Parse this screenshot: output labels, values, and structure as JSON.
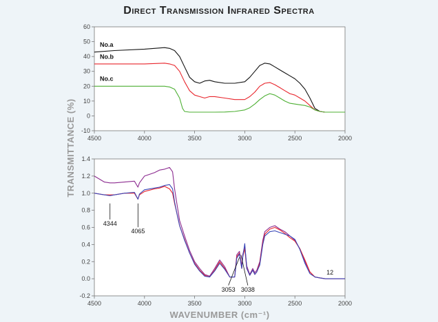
{
  "title": "Direct Transmission Infrared Spectra",
  "colors": {
    "black": "#111111",
    "red": "#e8232a",
    "green": "#4caf32",
    "purple": "#8b2a8f",
    "blue": "#3846b8",
    "background": "#eef4f8"
  },
  "chart_data": [
    {
      "type": "line",
      "xlim": [
        4500,
        2000
      ],
      "ylim": [
        -10,
        60
      ],
      "xticks": [
        4500,
        4000,
        3500,
        3000,
        2500,
        2000
      ],
      "yticks": [
        -10,
        0,
        10,
        20,
        30,
        40,
        50,
        60
      ],
      "series": [
        {
          "name": "No.a",
          "color": "#111111",
          "x": [
            4500,
            4300,
            4000,
            3800,
            3750,
            3700,
            3650,
            3600,
            3550,
            3500,
            3450,
            3400,
            3350,
            3300,
            3200,
            3100,
            3000,
            2950,
            2900,
            2850,
            2800,
            2750,
            2700,
            2650,
            2600,
            2550,
            2500,
            2450,
            2400,
            2350,
            2300,
            2250,
            2200,
            2100,
            2000
          ],
          "y": [
            43,
            44,
            45,
            46,
            45.5,
            44,
            40,
            33,
            26,
            23,
            22,
            23.5,
            24,
            23,
            22,
            22,
            23,
            26,
            30,
            34,
            35.5,
            35,
            33,
            31,
            29,
            27,
            25,
            22,
            18,
            12,
            5,
            3,
            2.5,
            2.5,
            2.5
          ]
        },
        {
          "name": "No.b",
          "color": "#e8232a",
          "x": [
            4500,
            4000,
            3800,
            3750,
            3700,
            3650,
            3600,
            3550,
            3500,
            3450,
            3400,
            3350,
            3300,
            3200,
            3100,
            3000,
            2950,
            2900,
            2850,
            2800,
            2750,
            2700,
            2650,
            2600,
            2550,
            2500,
            2450,
            2400,
            2350,
            2300,
            2250,
            2200,
            2100,
            2000
          ],
          "y": [
            35,
            35,
            35.5,
            35,
            34,
            30,
            23,
            17,
            14,
            13,
            12,
            13,
            13,
            12,
            11,
            11,
            13,
            16,
            20,
            22,
            22.5,
            21,
            19,
            17,
            15,
            14,
            12,
            10,
            7,
            4,
            3,
            2.5,
            2.5,
            2.5
          ]
        },
        {
          "name": "No.c",
          "color": "#4caf32",
          "x": [
            4500,
            4000,
            3800,
            3750,
            3700,
            3650,
            3620,
            3600,
            3550,
            3500,
            3400,
            3300,
            3200,
            3100,
            3000,
            2950,
            2900,
            2850,
            2800,
            2750,
            2700,
            2650,
            2600,
            2550,
            2500,
            2450,
            2400,
            2350,
            2300,
            2250,
            2200,
            2100,
            2000
          ],
          "y": [
            20,
            20,
            20,
            19.5,
            18,
            12,
            5,
            3,
            2.5,
            2.5,
            2.5,
            2.5,
            2.6,
            3,
            4,
            5.5,
            8,
            11,
            13.5,
            15,
            14,
            12,
            10,
            8.5,
            8,
            7.5,
            7,
            6,
            4,
            3,
            2.5,
            2.5,
            2.5
          ]
        }
      ],
      "labels": {
        "a": "No.a",
        "b": "No.b",
        "c": "No.c"
      }
    },
    {
      "type": "line",
      "xlim": [
        4500,
        2000
      ],
      "ylim": [
        -0.2,
        1.4
      ],
      "xticks": [
        4500,
        4000,
        3500,
        3000,
        2500,
        2000
      ],
      "yticks": [
        -0.2,
        0.0,
        0.2,
        0.4,
        0.6,
        0.8,
        1.0,
        1.2,
        1.4
      ],
      "series": [
        {
          "name": "purple",
          "color": "#8b2a8f",
          "x": [
            4500,
            4400,
            4344,
            4300,
            4200,
            4100,
            4065,
            4050,
            4000,
            3900,
            3850,
            3800,
            3750,
            3720,
            3700,
            3680,
            3650,
            3600,
            3550,
            3500,
            3450,
            3400,
            3350,
            3300,
            3250,
            3200,
            3150,
            3100,
            3080,
            3053,
            3040,
            3030,
            3020,
            3000,
            2980,
            2950,
            2920,
            2900,
            2880,
            2850,
            2820,
            2800,
            2750,
            2700,
            2650,
            2600,
            2550,
            2500,
            2450,
            2400,
            2350,
            2300,
            2250,
            2200,
            2100,
            2000
          ],
          "y": [
            1.2,
            1.13,
            1.12,
            1.12,
            1.13,
            1.14,
            1.07,
            1.12,
            1.2,
            1.24,
            1.27,
            1.28,
            1.3,
            1.25,
            1.05,
            0.9,
            0.68,
            0.5,
            0.33,
            0.2,
            0.12,
            0.05,
            0.03,
            0.12,
            0.22,
            0.14,
            0.02,
            0.02,
            0.28,
            0.32,
            0.22,
            0.15,
            0.28,
            0.38,
            0.15,
            0.05,
            0.12,
            0.07,
            0.1,
            0.2,
            0.45,
            0.55,
            0.6,
            0.62,
            0.58,
            0.55,
            0.5,
            0.45,
            0.35,
            0.2,
            0.08,
            0.02,
            0.01,
            0.0,
            0.0,
            0.0
          ]
        },
        {
          "name": "red",
          "color": "#e8232a",
          "x": [
            4500,
            4400,
            4344,
            4300,
            4200,
            4100,
            4065,
            4050,
            4000,
            3900,
            3850,
            3800,
            3750,
            3720,
            3700,
            3680,
            3650,
            3600,
            3550,
            3500,
            3450,
            3400,
            3350,
            3300,
            3250,
            3200,
            3150,
            3100,
            3080,
            3053,
            3040,
            3030,
            3020,
            3000,
            2980,
            2950,
            2920,
            2900,
            2880,
            2850,
            2820,
            2800,
            2750,
            2700,
            2650,
            2600,
            2550,
            2500,
            2450,
            2400,
            2350,
            2300,
            2250,
            2200,
            2100,
            2000
          ],
          "y": [
            1.0,
            0.98,
            0.98,
            0.98,
            1.0,
            1.0,
            0.93,
            0.98,
            1.02,
            1.05,
            1.06,
            1.08,
            1.05,
            1.0,
            0.88,
            0.78,
            0.62,
            0.46,
            0.3,
            0.18,
            0.1,
            0.04,
            0.02,
            0.1,
            0.2,
            0.12,
            0.02,
            0.02,
            0.26,
            0.3,
            0.2,
            0.12,
            0.26,
            0.35,
            0.12,
            0.04,
            0.1,
            0.05,
            0.08,
            0.18,
            0.42,
            0.52,
            0.58,
            0.6,
            0.57,
            0.53,
            0.48,
            0.44,
            0.35,
            0.22,
            0.08,
            0.02,
            0.01,
            0.0,
            0.0,
            0.0
          ]
        },
        {
          "name": "blue",
          "color": "#3846b8",
          "x": [
            4500,
            4400,
            4344,
            4300,
            4200,
            4100,
            4065,
            4050,
            4000,
            3900,
            3850,
            3800,
            3750,
            3720,
            3700,
            3680,
            3650,
            3600,
            3550,
            3500,
            3450,
            3400,
            3350,
            3300,
            3250,
            3200,
            3150,
            3100,
            3080,
            3053,
            3040,
            3030,
            3020,
            3000,
            2980,
            2950,
            2920,
            2900,
            2880,
            2850,
            2820,
            2800,
            2750,
            2700,
            2650,
            2600,
            2550,
            2500,
            2450,
            2400,
            2350,
            2300,
            2250,
            2200,
            2100,
            2000
          ],
          "y": [
            1.0,
            0.98,
            0.97,
            0.98,
            1.0,
            1.01,
            0.93,
            0.99,
            1.04,
            1.06,
            1.07,
            1.09,
            1.1,
            1.05,
            0.9,
            0.78,
            0.62,
            0.45,
            0.3,
            0.17,
            0.09,
            0.03,
            0.02,
            0.09,
            0.18,
            0.11,
            0.02,
            0.02,
            0.24,
            0.29,
            0.19,
            0.12,
            0.25,
            0.41,
            0.12,
            0.04,
            0.1,
            0.05,
            0.08,
            0.16,
            0.4,
            0.5,
            0.55,
            0.56,
            0.54,
            0.52,
            0.5,
            0.46,
            0.34,
            0.18,
            0.06,
            0.02,
            0.01,
            0.0,
            0.0,
            0.0
          ]
        }
      ],
      "annotations": [
        {
          "text": "4344",
          "x": 4344,
          "y": 0.97,
          "anchor_y": 0.88,
          "label_y": 0.62
        },
        {
          "text": "4065",
          "x": 4065,
          "y": 0.95,
          "anchor_y": 0.88,
          "label_y": 0.53
        },
        {
          "text": "3053",
          "x": 3053,
          "y": 0.27,
          "anchor_y": 0.25,
          "label_y": -0.15
        },
        {
          "text": "3038",
          "x": 3038,
          "y": 0.3,
          "anchor_y": 0.28,
          "label_y": -0.15
        }
      ],
      "end_label": "12"
    }
  ],
  "xlabel": "WAVENUMBER (cm⁻¹)",
  "ylabel": "TRANSMITTANCE (%)"
}
